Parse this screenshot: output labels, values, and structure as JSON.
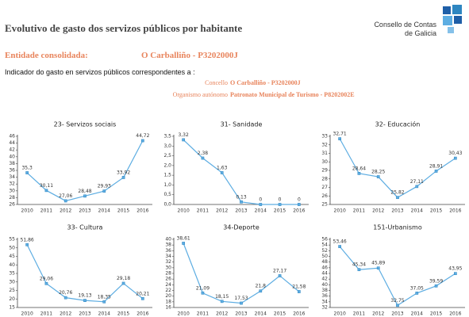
{
  "header": {
    "title": "Evolutivo de gasto dos servizos públicos por habitante",
    "logo_line1": "Consello de Contas",
    "logo_line2": "de Galicia"
  },
  "entity": {
    "label": "Entidade consolidada:",
    "value": "O Carballiño - P3202000J"
  },
  "indicator": {
    "text": "Indicador do gasto en servizos públicos correspondentes a :",
    "organizations": [
      {
        "type": "Concello",
        "name": "O Carballiño - P3202000J"
      },
      {
        "type": "Organismo autónomo",
        "name": "Patronato Municipal de Turismo - P8202002E"
      }
    ]
  },
  "chart_data": [
    {
      "type": "line",
      "title": "23- Servizos sociais",
      "color": "#5dade2",
      "categories": [
        "2010",
        "2011",
        "2012",
        "2013",
        "2014",
        "2015",
        "2016"
      ],
      "values": [
        35.3,
        30.11,
        27.06,
        28.48,
        29.93,
        33.92,
        44.72
      ],
      "value_labels": [
        "35,3",
        "30,11",
        "27,06",
        "28,48",
        "29,93",
        "33,92",
        "44,72"
      ],
      "ylim": [
        26,
        46
      ],
      "yticks": [
        26,
        28,
        30,
        32,
        34,
        36,
        38,
        40,
        42,
        44,
        46
      ]
    },
    {
      "type": "line",
      "title": "31- Sanidade",
      "color": "#5dade2",
      "categories": [
        "2010",
        "2011",
        "2012",
        "2013",
        "2014",
        "2015",
        "2016"
      ],
      "values": [
        3.32,
        2.38,
        1.63,
        0.13,
        0,
        0,
        0
      ],
      "value_labels": [
        "3,32",
        "2,38",
        "1,63",
        "0,13",
        "0",
        "0",
        "0"
      ],
      "ylim": [
        0,
        3.5
      ],
      "yticks": [
        {
          "value": 0,
          "label": "0,0"
        },
        {
          "value": 0.5,
          "label": "0,5"
        },
        {
          "value": 1,
          "label": "1,0"
        },
        {
          "value": 1.5,
          "label": "1,5"
        },
        {
          "value": 2,
          "label": "2,0"
        },
        {
          "value": 2.5,
          "label": "2,5"
        },
        {
          "value": 3,
          "label": "3,0"
        },
        {
          "value": 3.5,
          "label": "3,5"
        }
      ]
    },
    {
      "type": "line",
      "title": "32- Educación",
      "color": "#5dade2",
      "categories": [
        "2010",
        "2011",
        "2012",
        "2013",
        "2014",
        "2015",
        "2016"
      ],
      "values": [
        32.71,
        28.64,
        28.25,
        25.82,
        27.11,
        28.91,
        30.43
      ],
      "value_labels": [
        "32,71",
        "28,64",
        "28,25",
        "25,82",
        "27,11",
        "28,91",
        "30,43"
      ],
      "ylim": [
        25,
        33
      ],
      "yticks": [
        25,
        26,
        27,
        28,
        29,
        30,
        31,
        32,
        33
      ]
    },
    {
      "type": "line",
      "title": "33- Cultura",
      "color": "#5dade2",
      "categories": [
        "2010",
        "2011",
        "2012",
        "2013",
        "2014",
        "2015",
        "2016"
      ],
      "values": [
        51.86,
        29.06,
        20.76,
        19.13,
        18.35,
        29.18,
        20.21
      ],
      "value_labels": [
        "51,86",
        "29,06",
        "20,76",
        "19,13",
        "18,35",
        "29,18",
        "20,21"
      ],
      "ylim": [
        15,
        55
      ],
      "yticks": [
        15,
        20,
        25,
        30,
        35,
        40,
        45,
        50,
        55
      ]
    },
    {
      "type": "line",
      "title": "34-Deporte",
      "color": "#5dade2",
      "categories": [
        "2010",
        "2011",
        "2012",
        "2013",
        "2014",
        "2015",
        "2016"
      ],
      "values": [
        38.61,
        21.09,
        18.15,
        17.53,
        21.8,
        27.17,
        21.58
      ],
      "value_labels": [
        "38,61",
        "21,09",
        "18,15",
        "17,53",
        "21,8",
        "27,17",
        "21,58"
      ],
      "ylim": [
        16,
        40
      ],
      "yticks": [
        16,
        18,
        20,
        22,
        24,
        26,
        28,
        30,
        32,
        34,
        36,
        38,
        40
      ]
    },
    {
      "type": "line",
      "title": "151-Urbanismo",
      "color": "#5dade2",
      "categories": [
        "2010",
        "2011",
        "2012",
        "2013",
        "2014",
        "2015",
        "2016"
      ],
      "values": [
        53.46,
        45.34,
        45.89,
        32.75,
        37.05,
        39.59,
        43.95
      ],
      "value_labels": [
        "53,46",
        "45,34",
        "45,89",
        "32,75",
        "37,05",
        "39,59",
        "43,95"
      ],
      "ylim": [
        32,
        56
      ],
      "yticks": [
        32,
        34,
        36,
        38,
        40,
        42,
        44,
        46,
        48,
        50,
        52,
        54,
        56
      ]
    }
  ]
}
